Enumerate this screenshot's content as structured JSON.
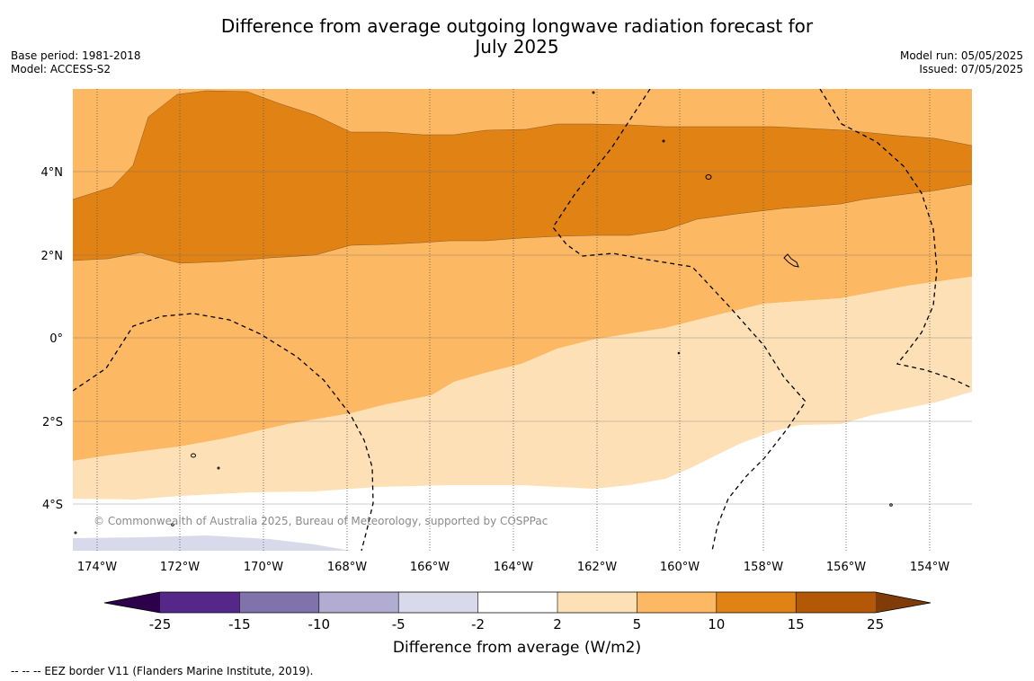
{
  "header": {
    "title_line1": "Difference from average outgoing longwave radiation forecast for",
    "title_line2": "July 2025",
    "base_period": "Base period: 1981-2018",
    "model": "Model: ACCESS-S2",
    "model_run": "Model run: 05/05/2025",
    "issued": "Issued: 07/05/2025"
  },
  "map": {
    "copyright": "© Commonwealth of Australia 2025, Bureau of Meteorology, supported by COSPPac",
    "lon_labels": [
      "174°W",
      "172°W",
      "170°W",
      "168°W",
      "166°W",
      "164°W",
      "162°W",
      "160°W",
      "158°W",
      "156°W",
      "154°W"
    ],
    "lat_labels": [
      "4°N",
      "2°N",
      "0°",
      "2°S",
      "4°S"
    ]
  },
  "colorbar": {
    "label": "Difference from average (W/m2)",
    "ticks": [
      "-25",
      "-15",
      "-10",
      "-5",
      "-2",
      "2",
      "5",
      "10",
      "15",
      "25"
    ],
    "colors": [
      "#2d004b",
      "#542788",
      "#8073ac",
      "#b2abd2",
      "#d8daeb",
      "#ffffff",
      "#fee0b6",
      "#fdb863",
      "#e08214",
      "#b35806",
      "#7f3b08"
    ]
  },
  "footnote": "--  --  -- EEZ border V11 (Flanders Marine Institute, 2019)."
}
